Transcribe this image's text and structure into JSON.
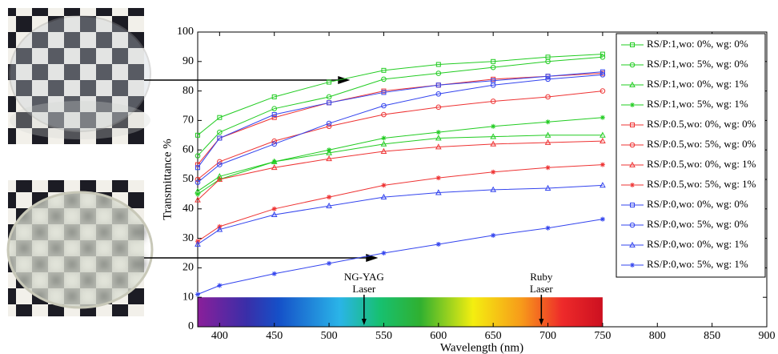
{
  "chart_data": {
    "type": "line",
    "y_label": "Transmittance %",
    "x_label": "Wavelength (nm)",
    "x": [
      380,
      400,
      450,
      500,
      550,
      600,
      650,
      700,
      750
    ],
    "xlim": [
      380,
      900
    ],
    "xticks": [
      400,
      450,
      500,
      550,
      600,
      650,
      700,
      750,
      800,
      850,
      900
    ],
    "ylim": [
      0,
      100
    ],
    "yticks": [
      0,
      10,
      20,
      30,
      40,
      50,
      60,
      70,
      80,
      90,
      100
    ],
    "legend": "upper right",
    "series": [
      {
        "name": "RS/P:1,wo: 0%, wg: 0%",
        "color": "#22cc22",
        "marker": "square",
        "values": [
          65,
          71,
          78,
          83,
          87,
          89,
          90,
          91.5,
          92.5
        ]
      },
      {
        "name": "RS/P:1,wo: 5%, wg: 0%",
        "color": "#22cc22",
        "marker": "circle",
        "values": [
          58,
          66,
          74,
          78,
          84,
          86,
          88,
          90,
          91.5
        ]
      },
      {
        "name": "RS/P:1,wo: 0%, wg: 1%",
        "color": "#22cc22",
        "marker": "triangle",
        "values": [
          46,
          51,
          56,
          59,
          62,
          64,
          64.5,
          65,
          65
        ]
      },
      {
        "name": "RS/P:1,wo: 5%, wg: 1%",
        "color": "#22cc22",
        "marker": "star",
        "values": [
          45,
          50,
          56,
          60,
          64,
          66,
          68,
          69.5,
          71
        ]
      },
      {
        "name": "RS/P:0.5,wo: 0%, wg: 0%",
        "color": "#ee3333",
        "marker": "square",
        "values": [
          55,
          64,
          71,
          76,
          80,
          82,
          84,
          85,
          86
        ]
      },
      {
        "name": "RS/P:0.5,wo: 5%, wg: 0%",
        "color": "#ee3333",
        "marker": "circle",
        "values": [
          50,
          56,
          63,
          68,
          72,
          74.5,
          76.5,
          78,
          80
        ]
      },
      {
        "name": "RS/P:0.5,wo: 0%, wg: 1%",
        "color": "#ee3333",
        "marker": "triangle",
        "values": [
          43,
          50,
          54,
          57,
          59.5,
          61,
          62,
          62.5,
          63
        ]
      },
      {
        "name": "RS/P:0.5,wo: 5%, wg: 1%",
        "color": "#ee3333",
        "marker": "star",
        "values": [
          29,
          34,
          40,
          44,
          48,
          50.5,
          52.5,
          54,
          55
        ]
      },
      {
        "name": "RS/P:0,wo: 0%, wg: 0%",
        "color": "#3344ee",
        "marker": "square",
        "values": [
          54,
          64,
          72,
          76,
          79.5,
          82,
          83.5,
          85,
          86.5
        ]
      },
      {
        "name": "RS/P:0,wo: 5%, wg: 0%",
        "color": "#3344ee",
        "marker": "circle",
        "values": [
          49,
          55,
          62,
          69,
          75,
          79,
          82,
          84,
          85.5
        ]
      },
      {
        "name": "RS/P:0,wo: 0%, wg: 1%",
        "color": "#3344ee",
        "marker": "triangle",
        "values": [
          28,
          33,
          38,
          41,
          44,
          45.5,
          46.5,
          47,
          48
        ]
      },
      {
        "name": "RS/P:0,wo: 5%, wg: 1%",
        "color": "#3344ee",
        "marker": "star",
        "values": [
          11,
          14,
          18,
          21.5,
          25,
          28,
          31,
          33.5,
          36.5
        ]
      }
    ],
    "spectrum": {
      "x": [
        380,
        750
      ],
      "y": [
        0,
        10
      ]
    },
    "annotations": [
      {
        "lines": [
          "NG-YAG",
          "Laser"
        ],
        "x": 532
      },
      {
        "lines": [
          "Ruby",
          "Laser"
        ],
        "x": 694
      }
    ]
  }
}
